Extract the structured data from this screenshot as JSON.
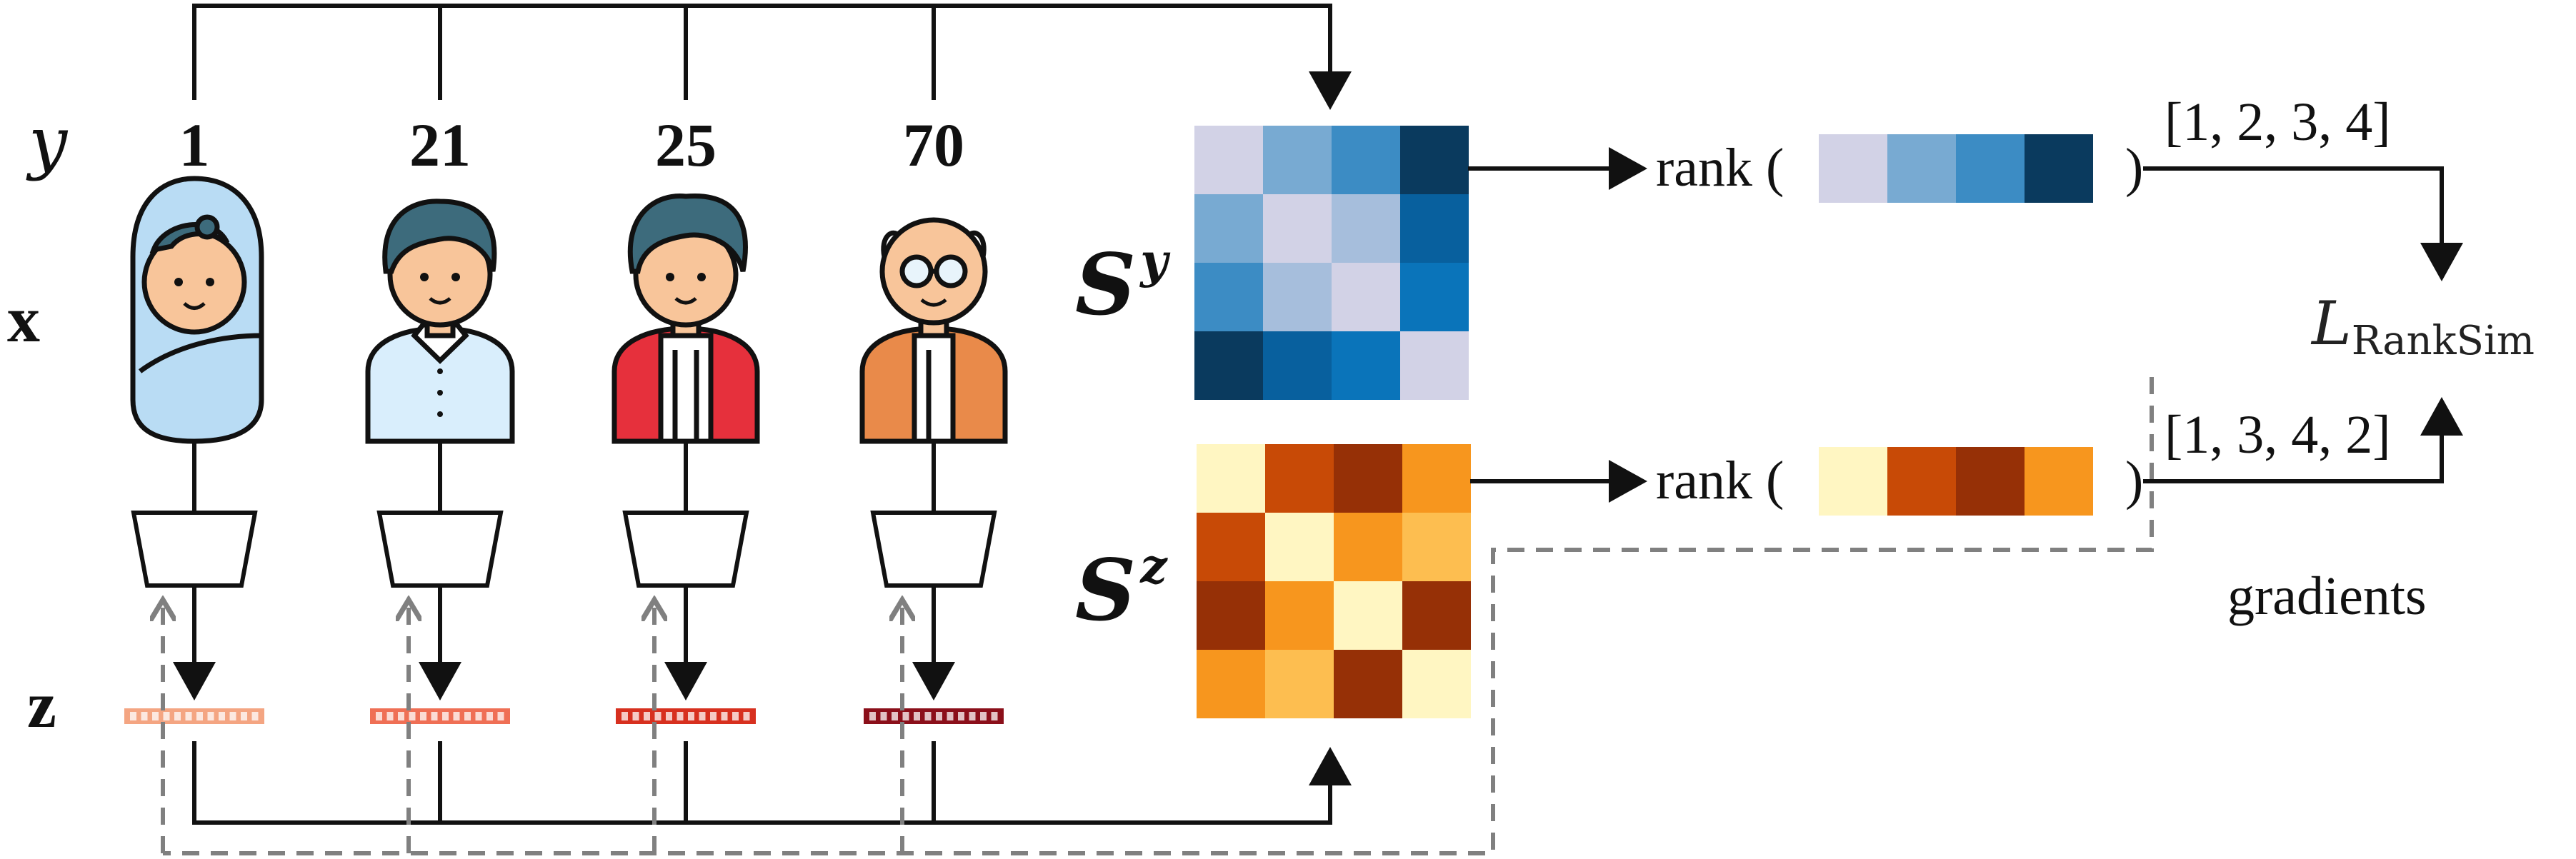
{
  "labels": {
    "y": "y",
    "x": "x",
    "z": "z",
    "sy_base": "S",
    "sy_sup": "y",
    "sz_base": "S",
    "sz_sup": "z",
    "rank_open": "rank (",
    "rank_close": ")",
    "loss_base": "L",
    "loss_sub": "RankSim",
    "gradients": "gradients"
  },
  "ages": [
    "1",
    "21",
    "25",
    "70"
  ],
  "people": [
    {
      "icon": "baby-icon",
      "embedding_color": "#f4a582"
    },
    {
      "icon": "young-man-icon",
      "embedding_color": "#ef6f55"
    },
    {
      "icon": "man-icon",
      "embedding_color": "#d7301f"
    },
    {
      "icon": "old-man-icon",
      "embedding_color": "#8b0f1a"
    }
  ],
  "matrices": {
    "s_y": {
      "colors": [
        [
          "#d2d2e6",
          "#78aad2",
          "#3c8cc4",
          "#0a3a5e"
        ],
        [
          "#78aad2",
          "#d2d2e6",
          "#a6bedc",
          "#08609e"
        ],
        [
          "#3c8cc4",
          "#a6bedc",
          "#d2d2e6",
          "#0a74ba"
        ],
        [
          "#0a3a5e",
          "#08609e",
          "#0a74ba",
          "#d2d2e6"
        ]
      ]
    },
    "s_z": {
      "colors": [
        [
          "#fff6c2",
          "#c84a06",
          "#963006",
          "#f7961e"
        ],
        [
          "#c84a06",
          "#fff6c2",
          "#f7961e",
          "#fdbe50"
        ],
        [
          "#963006",
          "#f7961e",
          "#fff6c2",
          "#963006"
        ],
        [
          "#f7961e",
          "#fdbe50",
          "#963006",
          "#fff6c2"
        ]
      ]
    }
  },
  "rank_y": {
    "row_colors": [
      "#d2d2e6",
      "#78aad2",
      "#3c8cc4",
      "#0a3a5e"
    ],
    "result": "[1, 2, 3, 4]"
  },
  "rank_z": {
    "row_colors": [
      "#fff6c2",
      "#c84a06",
      "#963006",
      "#f7961e"
    ],
    "result": "[1, 3, 4, 2]"
  }
}
